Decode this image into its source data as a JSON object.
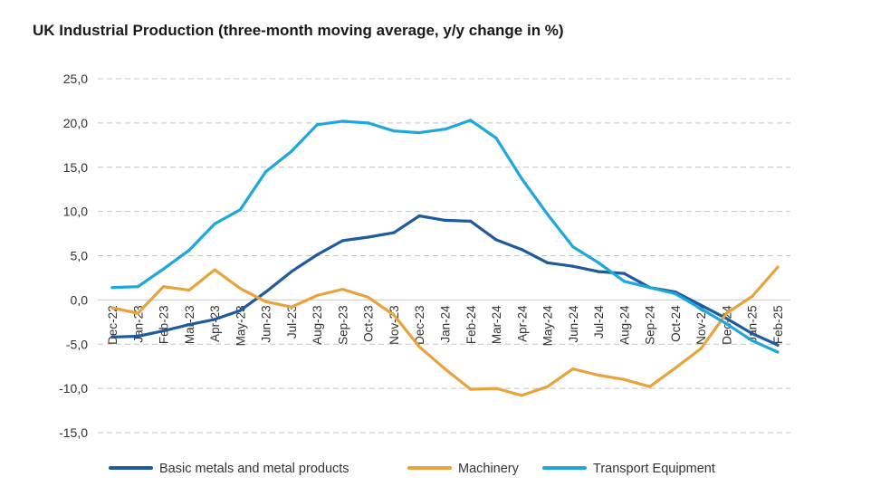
{
  "chart_data": {
    "type": "line",
    "title": "UK Industrial Production (three-month moving average, y/y change in %)",
    "xlabel": "",
    "ylabel": "",
    "ylim": [
      -15,
      25
    ],
    "yticks": [
      "25,0",
      "20,0",
      "15,0",
      "10,0",
      "5,0",
      "0,0",
      "-5,0",
      "-10,0",
      "-15,0"
    ],
    "ytick_values": [
      25,
      20,
      15,
      10,
      5,
      0,
      -5,
      -10,
      -15
    ],
    "grid": true,
    "legend_position": "bottom",
    "categories": [
      "Dec-22",
      "Jan-23",
      "Feb-23",
      "Mar-23",
      "Apr-23",
      "May-23",
      "Jun-23",
      "Jul-23",
      "Aug-23",
      "Sep-23",
      "Oct-23",
      "Nov-23",
      "Dec-23",
      "Jan-24",
      "Feb-24",
      "Mar-24",
      "Apr-24",
      "May-24",
      "Jun-24",
      "Jul-24",
      "Aug-24",
      "Sep-24",
      "Oct-24",
      "Nov-24",
      "Dec-24",
      "Jan-25",
      "Feb-25"
    ],
    "series": [
      {
        "name": "Basic metals and metal products",
        "color": "#1f5a9e",
        "values": [
          -4.2,
          -4.1,
          -3.5,
          -2.8,
          -2.2,
          -1.2,
          0.9,
          3.2,
          5.1,
          6.7,
          7.1,
          7.6,
          9.5,
          9.0,
          8.9,
          6.8,
          5.7,
          4.2,
          3.8,
          3.2,
          3.0,
          1.4,
          0.9,
          -0.6,
          -2.1,
          -3.8,
          -5.1
        ]
      },
      {
        "name": "Machinery",
        "color": "#e8a33d",
        "values": [
          -0.9,
          -1.5,
          1.5,
          1.1,
          3.4,
          1.3,
          -0.2,
          -0.8,
          0.5,
          1.2,
          0.3,
          -1.7,
          -5.3,
          -7.8,
          -10.1,
          -10.0,
          -10.8,
          -9.8,
          -7.8,
          -8.5,
          -9.0,
          -9.8,
          -7.7,
          -5.5,
          -1.5,
          0.4,
          3.7
        ]
      },
      {
        "name": "Transport Equipment",
        "color": "#1ea7dd",
        "values": [
          1.4,
          1.5,
          3.5,
          5.6,
          8.6,
          10.2,
          14.5,
          16.8,
          19.8,
          20.2,
          20.0,
          19.1,
          18.9,
          19.3,
          20.3,
          18.3,
          13.7,
          9.7,
          6.0,
          4.2,
          2.1,
          1.4,
          0.7,
          -1.0,
          -2.7,
          -4.6,
          -5.9
        ]
      }
    ]
  }
}
